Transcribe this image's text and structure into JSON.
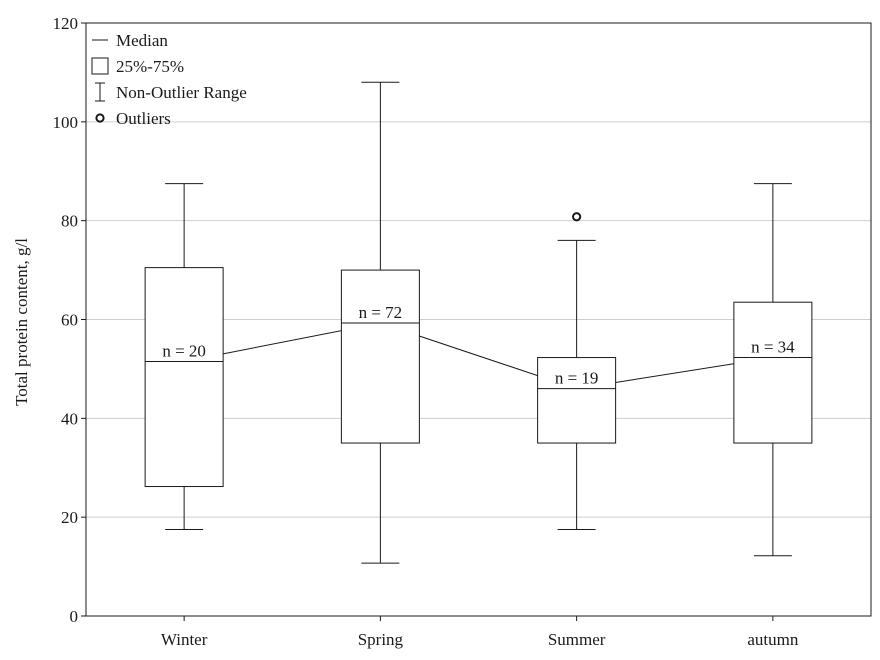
{
  "chart_data": {
    "type": "box",
    "ylabel": "Total protein content, g/l",
    "xlabel": "",
    "ylim": [
      0,
      120
    ],
    "yticks": [
      0,
      20,
      40,
      60,
      80,
      100,
      120
    ],
    "categories": [
      "Winter",
      "Spring",
      "Summer",
      "autumn"
    ],
    "boxes": [
      {
        "category": "Winter",
        "whisker_low": 17.5,
        "q1": 26.2,
        "median": 51.5,
        "q3": 70.5,
        "whisker_high": 87.5,
        "n_label": "n = 20",
        "outliers": []
      },
      {
        "category": "Spring",
        "whisker_low": 10.7,
        "q1": 35.0,
        "median": 59.3,
        "q3": 70.0,
        "whisker_high": 108.0,
        "n_label": "n = 72",
        "outliers": []
      },
      {
        "category": "Summer",
        "whisker_low": 17.5,
        "q1": 35.0,
        "median": 46.0,
        "q3": 52.3,
        "whisker_high": 76.0,
        "n_label": "n = 19",
        "outliers": [
          80.8
        ]
      },
      {
        "category": "autumn",
        "whisker_low": 12.2,
        "q1": 35.0,
        "median": 52.3,
        "q3": 63.5,
        "whisker_high": 87.5,
        "n_label": "n = 34",
        "outliers": []
      }
    ],
    "median_line": true,
    "grid": true,
    "legend": {
      "placement": "top-left",
      "entries": [
        {
          "symbol": "median",
          "label": "Median"
        },
        {
          "symbol": "box",
          "label": "25%-75%"
        },
        {
          "symbol": "whisker",
          "label": "Non-Outlier Range"
        },
        {
          "symbol": "outlier",
          "label": "Outliers"
        }
      ]
    }
  }
}
